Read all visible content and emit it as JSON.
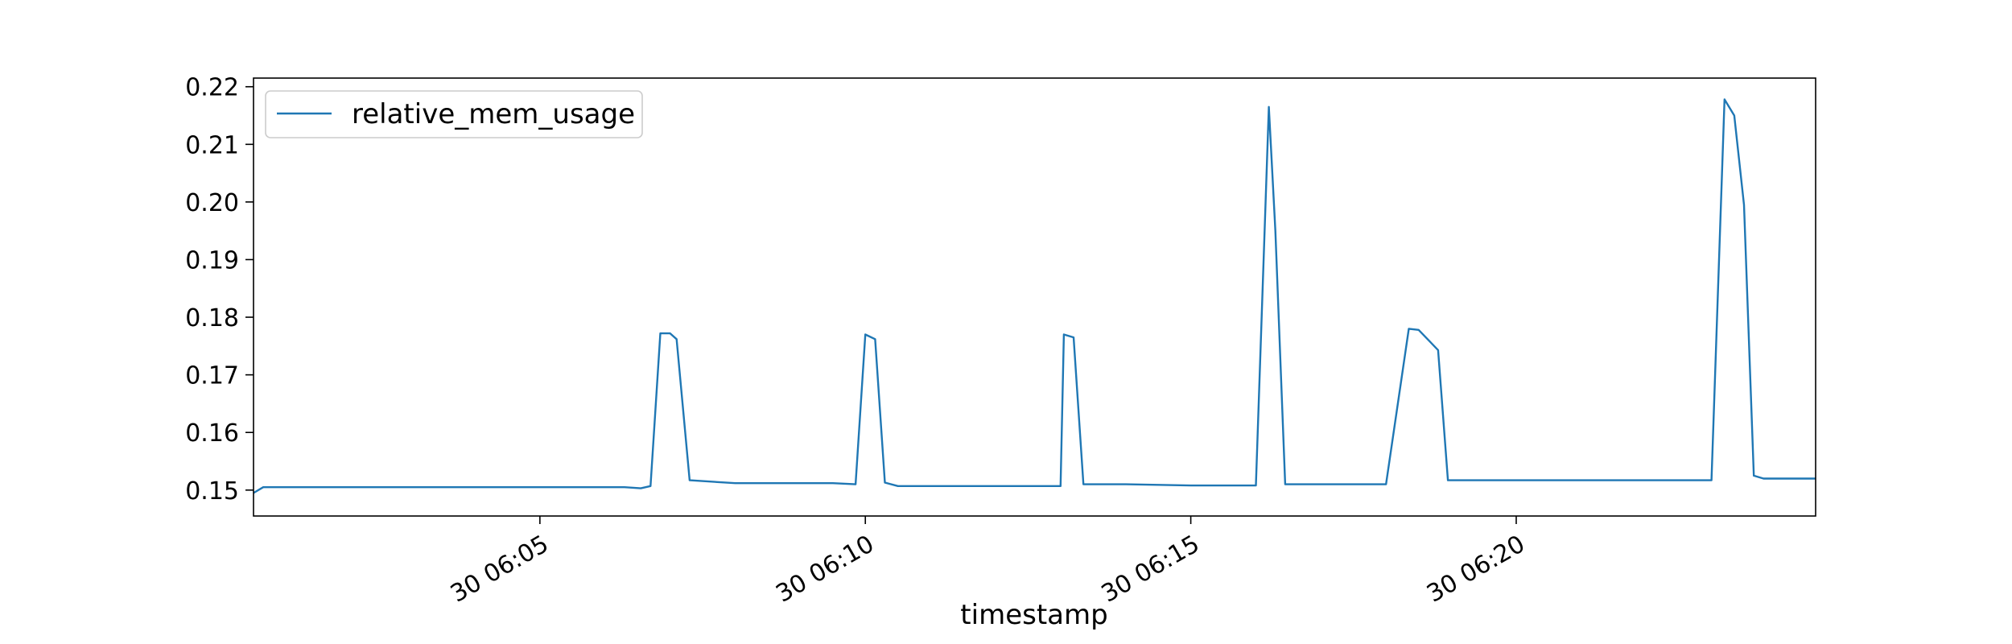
{
  "chart_data": {
    "type": "line",
    "title": "",
    "xlabel": "timestamp",
    "ylabel": "",
    "x_range": [
      "06:00.6",
      "06:24.6"
    ],
    "ylim": [
      0.1455,
      0.2215
    ],
    "y_ticks": [
      0.15,
      0.16,
      0.17,
      0.18,
      0.19,
      0.2,
      0.21,
      0.22
    ],
    "y_tick_labels": [
      "0.15",
      "0.16",
      "0.17",
      "0.18",
      "0.19",
      "0.20",
      "0.21",
      "0.22"
    ],
    "x_ticks": [
      "06:05",
      "06:10",
      "06:15",
      "06:20"
    ],
    "x_tick_labels": [
      "30 06:05",
      "30 06:10",
      "30 06:15",
      "30 06:20"
    ],
    "legend": {
      "position": "upper-left"
    },
    "grid": false,
    "series": [
      {
        "name": "relative_mem_usage",
        "color": "#1f77b4",
        "x": [
          "06:00.6",
          "06:00.75",
          "06:01",
          "06:02",
          "06:03",
          "06:04",
          "06:05",
          "06:06",
          "06:06.3",
          "06:06.55",
          "06:06.7",
          "06:06.85",
          "06:07.0",
          "06:07.1",
          "06:07.3",
          "06:08",
          "06:09",
          "06:09.5",
          "06:09.85",
          "06:10.0",
          "06:10.15",
          "06:10.3",
          "06:10.5",
          "06:11",
          "06:12",
          "06:13",
          "06:13.05",
          "06:13.2",
          "06:13.35",
          "06:13.6",
          "06:14",
          "06:15",
          "06:16",
          "06:16.2",
          "06:16.3",
          "06:16.45",
          "06:16.6",
          "06:16.75",
          "06:17",
          "06:18",
          "06:18.35",
          "06:18.5",
          "06:18.8",
          "06:18.95",
          "06:19.15",
          "06:20",
          "06:21",
          "06:22",
          "06:23",
          "06:23.2",
          "06:23.35",
          "06:23.5",
          "06:23.65",
          "06:23.8",
          "06:24",
          "06:24.6"
        ],
        "values": [
          0.1495,
          0.1505,
          0.1505,
          0.1505,
          0.1505,
          0.1505,
          0.1505,
          0.1505,
          0.1505,
          0.1503,
          0.1507,
          0.1772,
          0.1772,
          0.1762,
          0.1517,
          0.1512,
          0.1512,
          0.1512,
          0.151,
          0.177,
          0.1762,
          0.1513,
          0.1507,
          0.1507,
          0.1507,
          0.1507,
          0.177,
          0.1765,
          0.151,
          0.151,
          0.151,
          0.1508,
          0.1508,
          0.2165,
          0.195,
          0.151,
          0.151,
          0.151,
          0.151,
          0.151,
          0.178,
          0.1778,
          0.1743,
          0.1517,
          0.1517,
          0.1517,
          0.1517,
          0.1517,
          0.1517,
          0.2178,
          0.215,
          0.1995,
          0.1525,
          0.152,
          0.152,
          0.152
        ]
      }
    ]
  }
}
